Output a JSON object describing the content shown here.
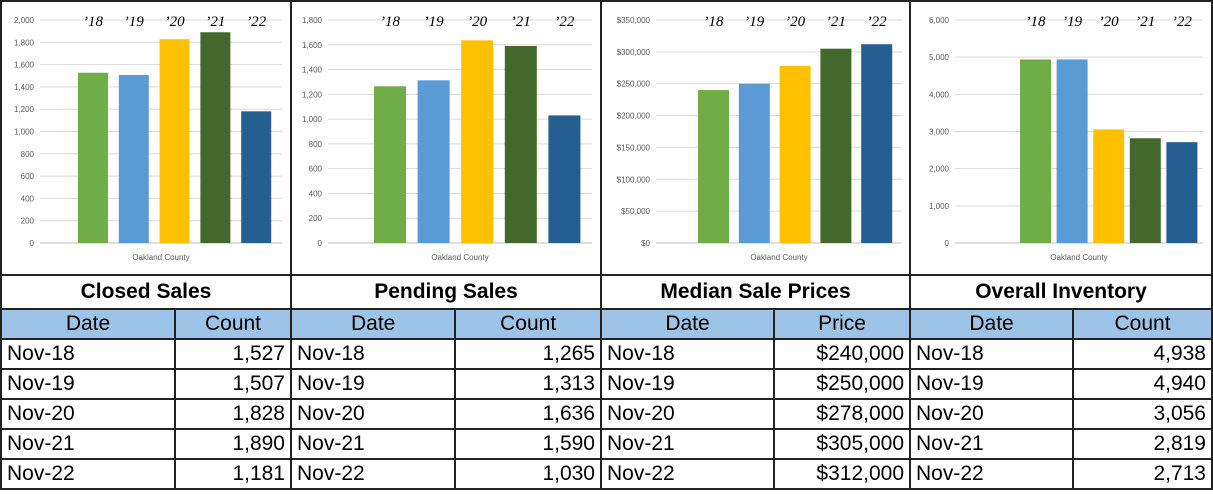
{
  "colors": [
    "#70ad47",
    "#5b9bd5",
    "#ffc000",
    "#43682b",
    "#255e91"
  ],
  "year_labels": [
    "’18",
    "’19",
    "’20",
    "’21",
    "’22"
  ],
  "panels": [
    {
      "title": "Closed Sales",
      "headers": [
        "Date",
        "Count"
      ],
      "rows": [
        {
          "date": "Nov-18",
          "value": "1,527"
        },
        {
          "date": "Nov-19",
          "value": "1,507"
        },
        {
          "date": "Nov-20",
          "value": "1,828"
        },
        {
          "date": "Nov-21",
          "value": "1,890"
        },
        {
          "date": "Nov-22",
          "value": "1,181"
        }
      ]
    },
    {
      "title": "Pending Sales",
      "headers": [
        "Date",
        "Count"
      ],
      "rows": [
        {
          "date": "Nov-18",
          "value": "1,265"
        },
        {
          "date": "Nov-19",
          "value": "1,313"
        },
        {
          "date": "Nov-20",
          "value": "1,636"
        },
        {
          "date": "Nov-21",
          "value": "1,590"
        },
        {
          "date": "Nov-22",
          "value": "1,030"
        }
      ]
    },
    {
      "title": "Median Sale Prices",
      "headers": [
        "Date",
        "Price"
      ],
      "rows": [
        {
          "date": "Nov-18",
          "value": "$240,000"
        },
        {
          "date": "Nov-19",
          "value": "$250,000"
        },
        {
          "date": "Nov-20",
          "value": "$278,000"
        },
        {
          "date": "Nov-21",
          "value": "$305,000"
        },
        {
          "date": "Nov-22",
          "value": "$312,000"
        }
      ]
    },
    {
      "title": "Overall Inventory",
      "headers": [
        "Date",
        "Count"
      ],
      "rows": [
        {
          "date": "Nov-18",
          "value": "4,938"
        },
        {
          "date": "Nov-19",
          "value": "4,940"
        },
        {
          "date": "Nov-20",
          "value": "3,056"
        },
        {
          "date": "Nov-21",
          "value": "2,819"
        },
        {
          "date": "Nov-22",
          "value": "2,713"
        }
      ]
    }
  ],
  "chart_data": [
    {
      "type": "bar",
      "title": "",
      "xlabel": "Oakland County",
      "ylabel": "",
      "categories": [
        "’18",
        "’19",
        "’20",
        "’21",
        "’22"
      ],
      "values": [
        1527,
        1507,
        1828,
        1890,
        1181
      ],
      "ylim": [
        0,
        2000
      ],
      "yticks": [
        0,
        200,
        400,
        600,
        800,
        1000,
        1200,
        1400,
        1600,
        1800,
        2000
      ],
      "ytick_labels": [
        "0",
        "200",
        "400",
        "600",
        "800",
        "1,000",
        "1,200",
        "1,400",
        "1,600",
        "1,800",
        "2,000"
      ],
      "grid": true,
      "legend": "none"
    },
    {
      "type": "bar",
      "title": "",
      "xlabel": "Oakland County",
      "ylabel": "",
      "categories": [
        "’18",
        "’19",
        "’20",
        "’21",
        "’22"
      ],
      "values": [
        1265,
        1313,
        1636,
        1590,
        1030
      ],
      "ylim": [
        0,
        1800
      ],
      "yticks": [
        0,
        200,
        400,
        600,
        800,
        1000,
        1200,
        1400,
        1600,
        1800
      ],
      "ytick_labels": [
        "0",
        "200",
        "400",
        "600",
        "800",
        "1,000",
        "1,200",
        "1,400",
        "1,600",
        "1,800"
      ],
      "grid": true,
      "legend": "none"
    },
    {
      "type": "bar",
      "title": "",
      "xlabel": "Oakland County",
      "ylabel": "",
      "categories": [
        "’18",
        "’19",
        "’20",
        "’21",
        "’22"
      ],
      "values": [
        240000,
        250000,
        278000,
        305000,
        312000
      ],
      "ylim": [
        0,
        350000
      ],
      "yticks": [
        0,
        50000,
        100000,
        150000,
        200000,
        250000,
        300000,
        350000
      ],
      "ytick_labels": [
        "$0",
        "$50,000",
        "$100,000",
        "$150,000",
        "$200,000",
        "$250,000",
        "$300,000",
        "$350,000"
      ],
      "grid": true,
      "legend": "none"
    },
    {
      "type": "bar",
      "title": "",
      "xlabel": "Oakland County",
      "ylabel": "",
      "categories": [
        "’18",
        "’19",
        "’20",
        "’21",
        "’22"
      ],
      "values": [
        4938,
        4940,
        3056,
        2819,
        2713
      ],
      "ylim": [
        0,
        6000
      ],
      "yticks": [
        0,
        1000,
        2000,
        3000,
        4000,
        5000,
        6000
      ],
      "ytick_labels": [
        "0",
        "1,000",
        "2,000",
        "3,000",
        "4,000",
        "5,000",
        "6,000"
      ],
      "grid": true,
      "legend": "none"
    }
  ]
}
